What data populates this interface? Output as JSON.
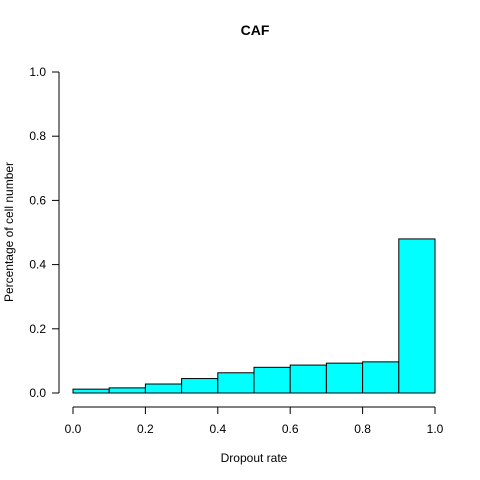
{
  "chart_data": {
    "type": "bar",
    "title": "CAF",
    "xlabel": "Dropout rate",
    "ylabel": "Percentage of cell number",
    "bins": [
      {
        "x0": 0.0,
        "x1": 0.1,
        "value": 0.012
      },
      {
        "x0": 0.1,
        "x1": 0.2,
        "value": 0.016
      },
      {
        "x0": 0.2,
        "x1": 0.3,
        "value": 0.028
      },
      {
        "x0": 0.3,
        "x1": 0.4,
        "value": 0.045
      },
      {
        "x0": 0.4,
        "x1": 0.5,
        "value": 0.063
      },
      {
        "x0": 0.5,
        "x1": 0.6,
        "value": 0.08
      },
      {
        "x0": 0.6,
        "x1": 0.7,
        "value": 0.087
      },
      {
        "x0": 0.7,
        "x1": 0.8,
        "value": 0.093
      },
      {
        "x0": 0.8,
        "x1": 0.9,
        "value": 0.097
      },
      {
        "x0": 0.9,
        "x1": 1.0,
        "value": 0.48
      }
    ],
    "xlim": [
      0,
      1
    ],
    "ylim": [
      0,
      1
    ],
    "x_ticks": [
      "0.0",
      "0.2",
      "0.4",
      "0.6",
      "0.8",
      "1.0"
    ],
    "y_ticks": [
      "0.0",
      "0.2",
      "0.4",
      "0.6",
      "0.8",
      "1.0"
    ],
    "bar_color": "#00FFFF",
    "grid": false,
    "legend": "none"
  }
}
